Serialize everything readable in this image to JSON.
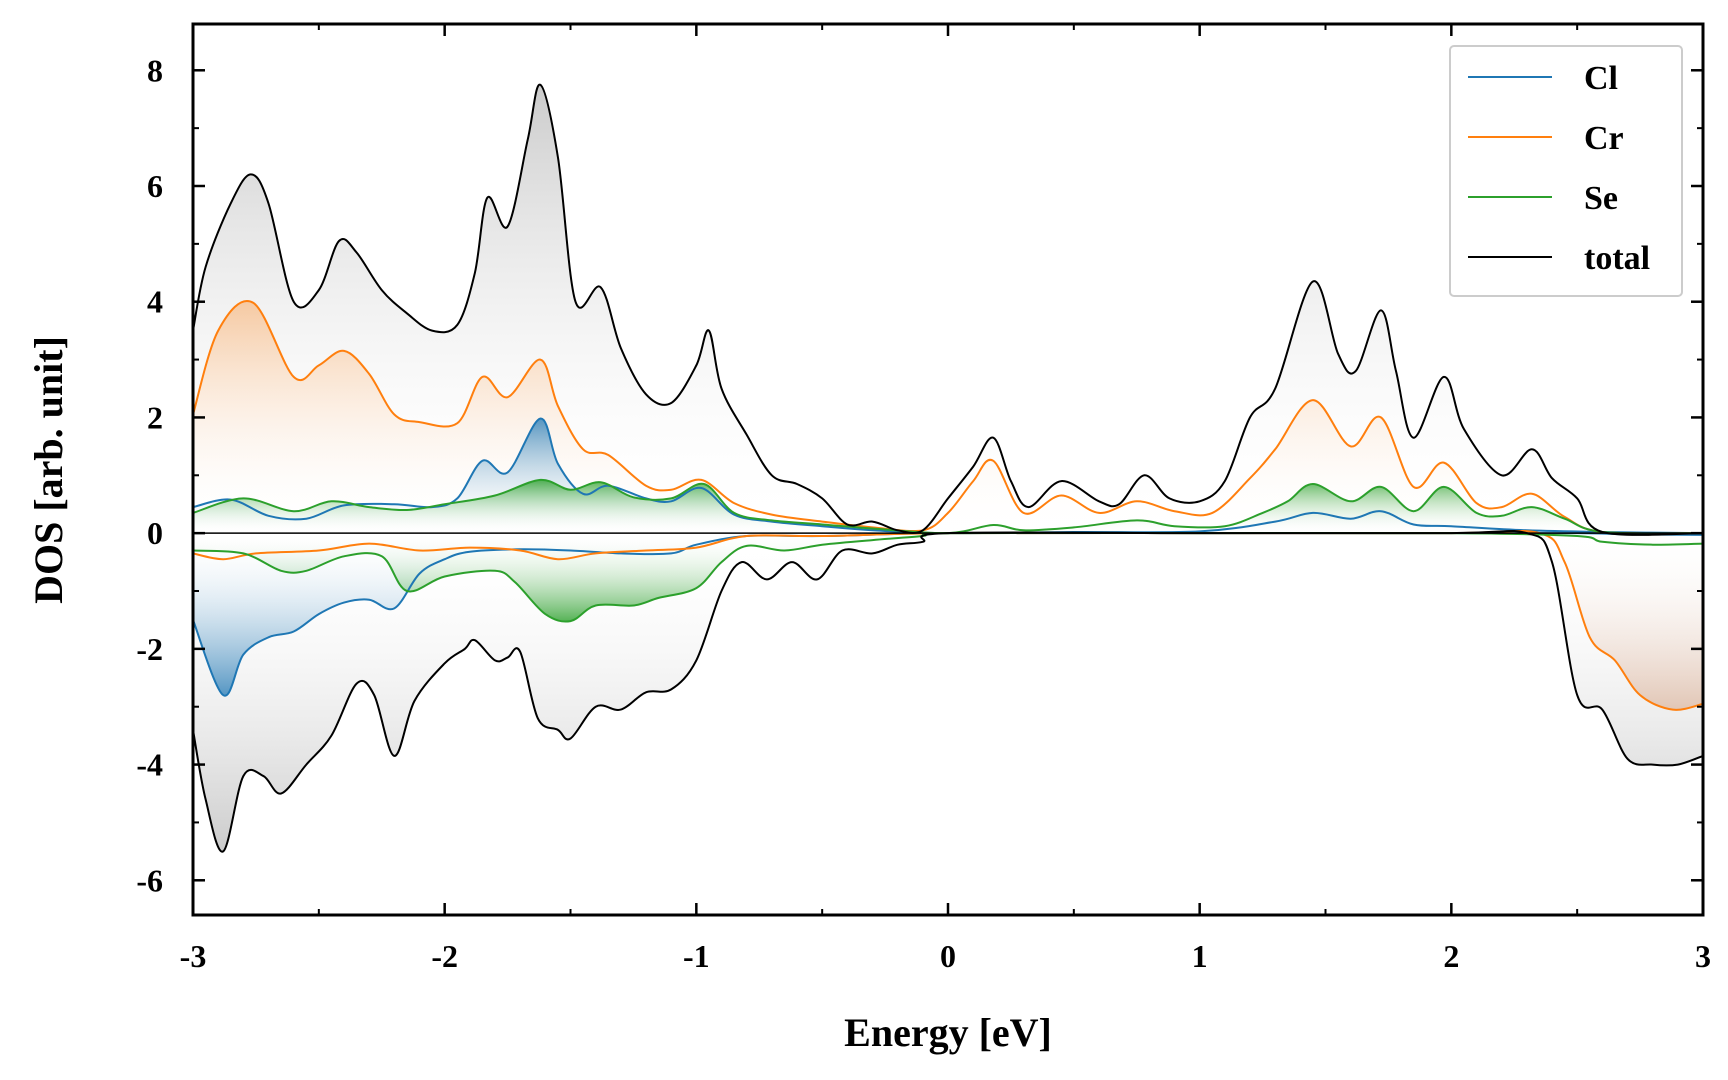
{
  "chart_data": {
    "type": "area",
    "xlabel": "Energy [eV]",
    "ylabel": "DOS [arb. unit]",
    "xlim": [
      -3,
      3
    ],
    "ylim": [
      -6.6,
      8.8
    ],
    "xticks": [
      -3,
      -2,
      -1,
      0,
      1,
      2,
      3
    ],
    "yticks": [
      -6,
      -4,
      -2,
      0,
      2,
      4,
      6,
      8
    ],
    "legend_position": "top-right",
    "series": [
      {
        "name": "Cl",
        "color": "#1f77b4",
        "up": [
          [
            -3,
            0.45
          ],
          [
            -2.85,
            0.58
          ],
          [
            -2.7,
            0.3
          ],
          [
            -2.55,
            0.25
          ],
          [
            -2.4,
            0.48
          ],
          [
            -2.2,
            0.5
          ],
          [
            -2.05,
            0.45
          ],
          [
            -1.95,
            0.6
          ],
          [
            -1.85,
            1.25
          ],
          [
            -1.75,
            1.05
          ],
          [
            -1.62,
            1.98
          ],
          [
            -1.55,
            1.2
          ],
          [
            -1.45,
            0.68
          ],
          [
            -1.35,
            0.82
          ],
          [
            -1.2,
            0.6
          ],
          [
            -1.1,
            0.55
          ],
          [
            -0.98,
            0.78
          ],
          [
            -0.85,
            0.32
          ],
          [
            -0.7,
            0.2
          ],
          [
            -0.5,
            0.12
          ],
          [
            -0.3,
            0.05
          ],
          [
            0,
            0.0
          ],
          [
            0.5,
            0.02
          ],
          [
            1.0,
            0.03
          ],
          [
            1.3,
            0.2
          ],
          [
            1.45,
            0.35
          ],
          [
            1.6,
            0.25
          ],
          [
            1.72,
            0.38
          ],
          [
            1.85,
            0.15
          ],
          [
            2.0,
            0.12
          ],
          [
            2.3,
            0.05
          ],
          [
            2.6,
            0.02
          ],
          [
            3,
            0.0
          ]
        ],
        "down": [
          [
            -3,
            -1.5
          ],
          [
            -2.88,
            -2.8
          ],
          [
            -2.8,
            -2.1
          ],
          [
            -2.7,
            -1.8
          ],
          [
            -2.6,
            -1.7
          ],
          [
            -2.5,
            -1.4
          ],
          [
            -2.4,
            -1.2
          ],
          [
            -2.3,
            -1.15
          ],
          [
            -2.2,
            -1.3
          ],
          [
            -2.1,
            -0.7
          ],
          [
            -2.0,
            -0.45
          ],
          [
            -1.9,
            -0.32
          ],
          [
            -1.7,
            -0.28
          ],
          [
            -1.5,
            -0.3
          ],
          [
            -1.3,
            -0.35
          ],
          [
            -1.1,
            -0.35
          ],
          [
            -1.0,
            -0.2
          ],
          [
            -0.8,
            -0.05
          ],
          [
            -0.5,
            -0.05
          ],
          [
            0,
            0
          ],
          [
            1,
            0
          ],
          [
            2,
            0
          ],
          [
            2.5,
            0
          ],
          [
            2.7,
            -0.02
          ],
          [
            3,
            -0.03
          ]
        ]
      },
      {
        "name": "Cr",
        "color": "#ff7f0e",
        "up": [
          [
            -3,
            2.05
          ],
          [
            -2.9,
            3.5
          ],
          [
            -2.76,
            3.98
          ],
          [
            -2.6,
            2.7
          ],
          [
            -2.5,
            2.9
          ],
          [
            -2.4,
            3.15
          ],
          [
            -2.3,
            2.75
          ],
          [
            -2.2,
            2.05
          ],
          [
            -2.1,
            1.92
          ],
          [
            -1.95,
            1.9
          ],
          [
            -1.85,
            2.7
          ],
          [
            -1.75,
            2.35
          ],
          [
            -1.62,
            3.0
          ],
          [
            -1.55,
            2.2
          ],
          [
            -1.45,
            1.45
          ],
          [
            -1.35,
            1.35
          ],
          [
            -1.2,
            0.82
          ],
          [
            -1.1,
            0.75
          ],
          [
            -0.98,
            0.92
          ],
          [
            -0.85,
            0.52
          ],
          [
            -0.7,
            0.32
          ],
          [
            -0.5,
            0.2
          ],
          [
            -0.3,
            0.1
          ],
          [
            -0.1,
            0.05
          ],
          [
            0,
            0.35
          ],
          [
            0.1,
            0.9
          ],
          [
            0.18,
            1.25
          ],
          [
            0.3,
            0.35
          ],
          [
            0.45,
            0.65
          ],
          [
            0.6,
            0.35
          ],
          [
            0.75,
            0.55
          ],
          [
            0.9,
            0.38
          ],
          [
            1.05,
            0.35
          ],
          [
            1.2,
            0.95
          ],
          [
            1.3,
            1.45
          ],
          [
            1.45,
            2.3
          ],
          [
            1.6,
            1.5
          ],
          [
            1.72,
            2.0
          ],
          [
            1.85,
            0.8
          ],
          [
            1.97,
            1.22
          ],
          [
            2.1,
            0.52
          ],
          [
            2.2,
            0.45
          ],
          [
            2.32,
            0.68
          ],
          [
            2.45,
            0.28
          ],
          [
            2.6,
            0.02
          ],
          [
            3,
            0.0
          ]
        ],
        "down": [
          [
            -3,
            -0.35
          ],
          [
            -2.88,
            -0.45
          ],
          [
            -2.75,
            -0.35
          ],
          [
            -2.5,
            -0.3
          ],
          [
            -2.3,
            -0.18
          ],
          [
            -2.1,
            -0.3
          ],
          [
            -1.9,
            -0.25
          ],
          [
            -1.7,
            -0.3
          ],
          [
            -1.55,
            -0.45
          ],
          [
            -1.4,
            -0.35
          ],
          [
            -1.2,
            -0.3
          ],
          [
            -1.0,
            -0.25
          ],
          [
            -0.8,
            -0.05
          ],
          [
            -0.5,
            -0.05
          ],
          [
            0,
            0
          ],
          [
            1,
            0
          ],
          [
            2,
            0
          ],
          [
            2.35,
            0
          ],
          [
            2.45,
            -0.5
          ],
          [
            2.55,
            -1.8
          ],
          [
            2.65,
            -2.2
          ],
          [
            2.75,
            -2.8
          ],
          [
            2.88,
            -3.05
          ],
          [
            3,
            -2.95
          ]
        ]
      },
      {
        "name": "Se",
        "color": "#2ca02c",
        "up": [
          [
            -3,
            0.35
          ],
          [
            -2.8,
            0.6
          ],
          [
            -2.6,
            0.38
          ],
          [
            -2.45,
            0.55
          ],
          [
            -2.3,
            0.45
          ],
          [
            -2.15,
            0.4
          ],
          [
            -2.0,
            0.5
          ],
          [
            -1.8,
            0.65
          ],
          [
            -1.62,
            0.92
          ],
          [
            -1.5,
            0.75
          ],
          [
            -1.38,
            0.88
          ],
          [
            -1.25,
            0.62
          ],
          [
            -1.1,
            0.6
          ],
          [
            -0.97,
            0.85
          ],
          [
            -0.85,
            0.35
          ],
          [
            -0.7,
            0.22
          ],
          [
            -0.5,
            0.15
          ],
          [
            -0.3,
            0.08
          ],
          [
            0,
            0.0
          ],
          [
            0.18,
            0.14
          ],
          [
            0.3,
            0.05
          ],
          [
            0.5,
            0.1
          ],
          [
            0.75,
            0.22
          ],
          [
            0.9,
            0.12
          ],
          [
            1.1,
            0.12
          ],
          [
            1.25,
            0.35
          ],
          [
            1.35,
            0.55
          ],
          [
            1.45,
            0.85
          ],
          [
            1.6,
            0.55
          ],
          [
            1.72,
            0.8
          ],
          [
            1.85,
            0.38
          ],
          [
            1.97,
            0.8
          ],
          [
            2.1,
            0.35
          ],
          [
            2.2,
            0.3
          ],
          [
            2.32,
            0.45
          ],
          [
            2.45,
            0.25
          ],
          [
            2.6,
            0.02
          ],
          [
            3,
            0.0
          ]
        ],
        "down": [
          [
            -3,
            -0.3
          ],
          [
            -2.8,
            -0.35
          ],
          [
            -2.65,
            -0.65
          ],
          [
            -2.55,
            -0.65
          ],
          [
            -2.4,
            -0.4
          ],
          [
            -2.25,
            -0.4
          ],
          [
            -2.15,
            -1.0
          ],
          [
            -2.0,
            -0.75
          ],
          [
            -1.8,
            -0.65
          ],
          [
            -1.72,
            -0.85
          ],
          [
            -1.6,
            -1.4
          ],
          [
            -1.5,
            -1.52
          ],
          [
            -1.4,
            -1.25
          ],
          [
            -1.25,
            -1.25
          ],
          [
            -1.15,
            -1.12
          ],
          [
            -1.0,
            -0.95
          ],
          [
            -0.9,
            -0.5
          ],
          [
            -0.8,
            -0.22
          ],
          [
            -0.65,
            -0.3
          ],
          [
            -0.5,
            -0.2
          ],
          [
            -0.3,
            -0.12
          ],
          [
            -0.1,
            -0.05
          ],
          [
            0,
            0
          ],
          [
            1,
            0
          ],
          [
            2,
            0
          ],
          [
            2.5,
            -0.05
          ],
          [
            2.6,
            -0.15
          ],
          [
            2.8,
            -0.2
          ],
          [
            3,
            -0.18
          ]
        ]
      },
      {
        "name": "total",
        "color": "#000000",
        "up": [
          [
            -3,
            3.5
          ],
          [
            -2.95,
            4.6
          ],
          [
            -2.85,
            5.7
          ],
          [
            -2.77,
            6.2
          ],
          [
            -2.7,
            5.7
          ],
          [
            -2.6,
            4.0
          ],
          [
            -2.5,
            4.2
          ],
          [
            -2.42,
            5.05
          ],
          [
            -2.35,
            4.85
          ],
          [
            -2.25,
            4.2
          ],
          [
            -2.15,
            3.8
          ],
          [
            -2.05,
            3.5
          ],
          [
            -1.95,
            3.6
          ],
          [
            -1.88,
            4.5
          ],
          [
            -1.83,
            5.8
          ],
          [
            -1.75,
            5.3
          ],
          [
            -1.67,
            6.8
          ],
          [
            -1.62,
            7.75
          ],
          [
            -1.55,
            6.5
          ],
          [
            -1.48,
            4.0
          ],
          [
            -1.38,
            4.25
          ],
          [
            -1.3,
            3.2
          ],
          [
            -1.2,
            2.4
          ],
          [
            -1.1,
            2.25
          ],
          [
            -1.0,
            2.9
          ],
          [
            -0.95,
            3.5
          ],
          [
            -0.9,
            2.5
          ],
          [
            -0.8,
            1.7
          ],
          [
            -0.7,
            1.0
          ],
          [
            -0.6,
            0.85
          ],
          [
            -0.5,
            0.6
          ],
          [
            -0.4,
            0.15
          ],
          [
            -0.3,
            0.2
          ],
          [
            -0.2,
            0.05
          ],
          [
            -0.1,
            0.05
          ],
          [
            0,
            0.6
          ],
          [
            0.1,
            1.15
          ],
          [
            0.18,
            1.65
          ],
          [
            0.25,
            0.9
          ],
          [
            0.32,
            0.45
          ],
          [
            0.45,
            0.9
          ],
          [
            0.6,
            0.55
          ],
          [
            0.68,
            0.5
          ],
          [
            0.78,
            1.0
          ],
          [
            0.88,
            0.6
          ],
          [
            1.0,
            0.55
          ],
          [
            1.1,
            0.9
          ],
          [
            1.2,
            2.0
          ],
          [
            1.3,
            2.5
          ],
          [
            1.45,
            4.35
          ],
          [
            1.55,
            3.1
          ],
          [
            1.62,
            2.8
          ],
          [
            1.72,
            3.85
          ],
          [
            1.78,
            2.8
          ],
          [
            1.85,
            1.65
          ],
          [
            1.97,
            2.7
          ],
          [
            2.05,
            1.8
          ],
          [
            2.2,
            1.0
          ],
          [
            2.32,
            1.45
          ],
          [
            2.4,
            0.95
          ],
          [
            2.5,
            0.6
          ],
          [
            2.6,
            0.02
          ],
          [
            3,
            0.0
          ]
        ],
        "down": [
          [
            -3,
            -3.4
          ],
          [
            -2.95,
            -4.6
          ],
          [
            -2.88,
            -5.5
          ],
          [
            -2.8,
            -4.2
          ],
          [
            -2.72,
            -4.2
          ],
          [
            -2.65,
            -4.5
          ],
          [
            -2.55,
            -4.0
          ],
          [
            -2.45,
            -3.5
          ],
          [
            -2.35,
            -2.6
          ],
          [
            -2.28,
            -2.8
          ],
          [
            -2.2,
            -3.85
          ],
          [
            -2.12,
            -2.9
          ],
          [
            -2.0,
            -2.25
          ],
          [
            -1.92,
            -2.0
          ],
          [
            -1.88,
            -1.85
          ],
          [
            -1.8,
            -2.2
          ],
          [
            -1.75,
            -2.15
          ],
          [
            -1.7,
            -2.05
          ],
          [
            -1.63,
            -3.2
          ],
          [
            -1.55,
            -3.4
          ],
          [
            -1.5,
            -3.55
          ],
          [
            -1.4,
            -3.0
          ],
          [
            -1.3,
            -3.05
          ],
          [
            -1.2,
            -2.75
          ],
          [
            -1.1,
            -2.7
          ],
          [
            -1.0,
            -2.2
          ],
          [
            -0.9,
            -1.0
          ],
          [
            -0.82,
            -0.5
          ],
          [
            -0.72,
            -0.8
          ],
          [
            -0.62,
            -0.5
          ],
          [
            -0.52,
            -0.8
          ],
          [
            -0.42,
            -0.3
          ],
          [
            -0.3,
            -0.35
          ],
          [
            -0.2,
            -0.2
          ],
          [
            -0.1,
            -0.15
          ],
          [
            0,
            0
          ],
          [
            1,
            0
          ],
          [
            2,
            0
          ],
          [
            2.3,
            0
          ],
          [
            2.4,
            -0.5
          ],
          [
            2.5,
            -2.8
          ],
          [
            2.6,
            -3.05
          ],
          [
            2.7,
            -3.9
          ],
          [
            2.8,
            -4.0
          ],
          [
            2.9,
            -4.0
          ],
          [
            3,
            -3.85
          ]
        ]
      }
    ]
  }
}
